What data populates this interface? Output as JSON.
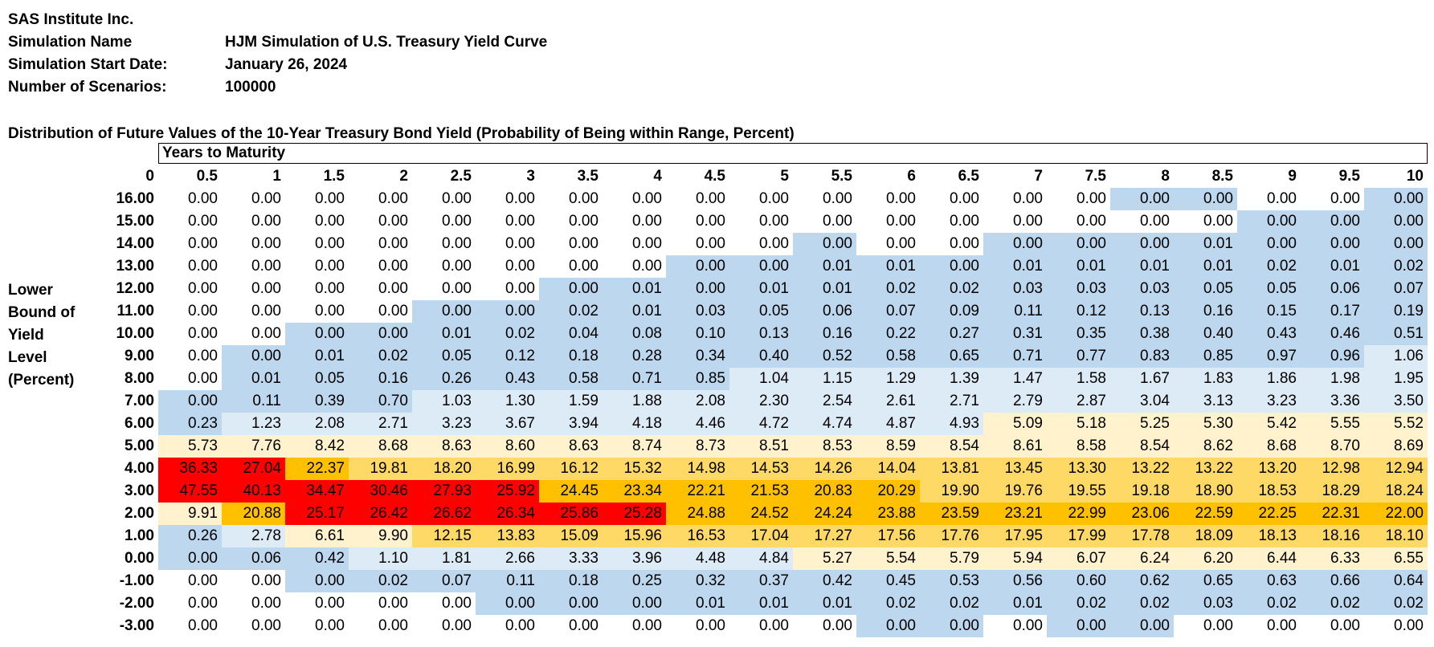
{
  "meta": {
    "company": "SAS Institute Inc.",
    "simulation_name_label": "Simulation Name",
    "simulation_name": "HJM Simulation of U.S. Treasury Yield Curve",
    "start_date_label": "Simulation Start Date:",
    "start_date": "January 26, 2024",
    "scenarios_label": "Number of Scenarios:",
    "scenarios": "100000"
  },
  "table_title": "Distribution of Future Values of the 10-Year Treasury Bond Yield (Probability of Being within Range, Percent)",
  "years_to_maturity_label": "Years to Maturity",
  "row_axis_label": [
    "Lower",
    "Bound of",
    "Yield",
    "Level",
    "(Percent)"
  ],
  "corner": "0",
  "columns": [
    "0.5",
    "1",
    "1.5",
    "2",
    "2.5",
    "3",
    "3.5",
    "4",
    "4.5",
    "5",
    "5.5",
    "6",
    "6.5",
    "7",
    "7.5",
    "8",
    "8.5",
    "9",
    "9.5",
    "10"
  ],
  "colors": {
    "none": "#ffffff",
    "blue": "#bdd7ee",
    "lightblue": "#ddebf7",
    "cream": "#fff2cc",
    "yellow": "#ffd966",
    "orange": "#ffc000",
    "red": "#ff0000"
  },
  "rows": [
    {
      "label": "16.00",
      "values": [
        "0.00",
        "0.00",
        "0.00",
        "0.00",
        "0.00",
        "0.00",
        "0.00",
        "0.00",
        "0.00",
        "0.00",
        "0.00",
        "0.00",
        "0.00",
        "0.00",
        "0.00",
        "0.00",
        "0.00",
        "0.00",
        "0.00",
        "0.00"
      ],
      "shades": [
        "none",
        "none",
        "none",
        "none",
        "none",
        "none",
        "none",
        "none",
        "none",
        "none",
        "none",
        "none",
        "none",
        "none",
        "none",
        "blue",
        "blue",
        "none",
        "none",
        "blue"
      ]
    },
    {
      "label": "15.00",
      "values": [
        "0.00",
        "0.00",
        "0.00",
        "0.00",
        "0.00",
        "0.00",
        "0.00",
        "0.00",
        "0.00",
        "0.00",
        "0.00",
        "0.00",
        "0.00",
        "0.00",
        "0.00",
        "0.00",
        "0.00",
        "0.00",
        "0.00",
        "0.00"
      ],
      "shades": [
        "none",
        "none",
        "none",
        "none",
        "none",
        "none",
        "none",
        "none",
        "none",
        "none",
        "none",
        "none",
        "none",
        "none",
        "none",
        "none",
        "none",
        "blue",
        "blue",
        "blue"
      ]
    },
    {
      "label": "14.00",
      "values": [
        "0.00",
        "0.00",
        "0.00",
        "0.00",
        "0.00",
        "0.00",
        "0.00",
        "0.00",
        "0.00",
        "0.00",
        "0.00",
        "0.00",
        "0.00",
        "0.00",
        "0.00",
        "0.00",
        "0.01",
        "0.00",
        "0.00",
        "0.00"
      ],
      "shades": [
        "none",
        "none",
        "none",
        "none",
        "none",
        "none",
        "none",
        "none",
        "none",
        "none",
        "blue",
        "none",
        "none",
        "blue",
        "blue",
        "blue",
        "blue",
        "blue",
        "blue",
        "blue"
      ]
    },
    {
      "label": "13.00",
      "values": [
        "0.00",
        "0.00",
        "0.00",
        "0.00",
        "0.00",
        "0.00",
        "0.00",
        "0.00",
        "0.00",
        "0.00",
        "0.01",
        "0.01",
        "0.00",
        "0.01",
        "0.01",
        "0.01",
        "0.01",
        "0.02",
        "0.01",
        "0.02"
      ],
      "shades": [
        "none",
        "none",
        "none",
        "none",
        "none",
        "none",
        "none",
        "none",
        "blue",
        "blue",
        "blue",
        "blue",
        "blue",
        "blue",
        "blue",
        "blue",
        "blue",
        "blue",
        "blue",
        "blue"
      ]
    },
    {
      "label": "12.00",
      "values": [
        "0.00",
        "0.00",
        "0.00",
        "0.00",
        "0.00",
        "0.00",
        "0.00",
        "0.01",
        "0.00",
        "0.01",
        "0.01",
        "0.02",
        "0.02",
        "0.03",
        "0.03",
        "0.03",
        "0.05",
        "0.05",
        "0.06",
        "0.07"
      ],
      "shades": [
        "none",
        "none",
        "none",
        "none",
        "none",
        "none",
        "blue",
        "blue",
        "blue",
        "blue",
        "blue",
        "blue",
        "blue",
        "blue",
        "blue",
        "blue",
        "blue",
        "blue",
        "blue",
        "blue"
      ]
    },
    {
      "label": "11.00",
      "values": [
        "0.00",
        "0.00",
        "0.00",
        "0.00",
        "0.00",
        "0.00",
        "0.02",
        "0.01",
        "0.03",
        "0.05",
        "0.06",
        "0.07",
        "0.09",
        "0.11",
        "0.12",
        "0.13",
        "0.16",
        "0.15",
        "0.17",
        "0.19"
      ],
      "shades": [
        "none",
        "none",
        "none",
        "none",
        "blue",
        "blue",
        "blue",
        "blue",
        "blue",
        "blue",
        "blue",
        "blue",
        "blue",
        "blue",
        "blue",
        "blue",
        "blue",
        "blue",
        "blue",
        "blue"
      ]
    },
    {
      "label": "10.00",
      "values": [
        "0.00",
        "0.00",
        "0.00",
        "0.00",
        "0.01",
        "0.02",
        "0.04",
        "0.08",
        "0.10",
        "0.13",
        "0.16",
        "0.22",
        "0.27",
        "0.31",
        "0.35",
        "0.38",
        "0.40",
        "0.43",
        "0.46",
        "0.51"
      ],
      "shades": [
        "none",
        "none",
        "blue",
        "blue",
        "blue",
        "blue",
        "blue",
        "blue",
        "blue",
        "blue",
        "blue",
        "blue",
        "blue",
        "blue",
        "blue",
        "blue",
        "blue",
        "blue",
        "blue",
        "blue"
      ]
    },
    {
      "label": "9.00",
      "values": [
        "0.00",
        "0.00",
        "0.01",
        "0.02",
        "0.05",
        "0.12",
        "0.18",
        "0.28",
        "0.34",
        "0.40",
        "0.52",
        "0.58",
        "0.65",
        "0.71",
        "0.77",
        "0.83",
        "0.85",
        "0.97",
        "0.96",
        "1.06"
      ],
      "shades": [
        "none",
        "blue",
        "blue",
        "blue",
        "blue",
        "blue",
        "blue",
        "blue",
        "blue",
        "blue",
        "blue",
        "blue",
        "blue",
        "blue",
        "blue",
        "blue",
        "blue",
        "blue",
        "blue",
        "lightblue"
      ]
    },
    {
      "label": "8.00",
      "values": [
        "0.00",
        "0.01",
        "0.05",
        "0.16",
        "0.26",
        "0.43",
        "0.58",
        "0.71",
        "0.85",
        "1.04",
        "1.15",
        "1.29",
        "1.39",
        "1.47",
        "1.58",
        "1.67",
        "1.83",
        "1.86",
        "1.98",
        "1.95"
      ],
      "shades": [
        "none",
        "blue",
        "blue",
        "blue",
        "blue",
        "blue",
        "blue",
        "blue",
        "blue",
        "lightblue",
        "lightblue",
        "lightblue",
        "lightblue",
        "lightblue",
        "lightblue",
        "lightblue",
        "lightblue",
        "lightblue",
        "lightblue",
        "lightblue"
      ]
    },
    {
      "label": "7.00",
      "values": [
        "0.00",
        "0.11",
        "0.39",
        "0.70",
        "1.03",
        "1.30",
        "1.59",
        "1.88",
        "2.08",
        "2.30",
        "2.54",
        "2.61",
        "2.71",
        "2.79",
        "2.87",
        "3.04",
        "3.13",
        "3.23",
        "3.36",
        "3.50"
      ],
      "shades": [
        "blue",
        "blue",
        "blue",
        "blue",
        "lightblue",
        "lightblue",
        "lightblue",
        "lightblue",
        "lightblue",
        "lightblue",
        "lightblue",
        "lightblue",
        "lightblue",
        "lightblue",
        "lightblue",
        "lightblue",
        "lightblue",
        "lightblue",
        "lightblue",
        "lightblue"
      ]
    },
    {
      "label": "6.00",
      "values": [
        "0.23",
        "1.23",
        "2.08",
        "2.71",
        "3.23",
        "3.67",
        "3.94",
        "4.18",
        "4.46",
        "4.72",
        "4.74",
        "4.87",
        "4.93",
        "5.09",
        "5.18",
        "5.25",
        "5.30",
        "5.42",
        "5.55",
        "5.52"
      ],
      "shades": [
        "blue",
        "lightblue",
        "lightblue",
        "lightblue",
        "lightblue",
        "lightblue",
        "lightblue",
        "lightblue",
        "lightblue",
        "lightblue",
        "lightblue",
        "lightblue",
        "lightblue",
        "cream",
        "cream",
        "cream",
        "cream",
        "cream",
        "cream",
        "cream"
      ]
    },
    {
      "label": "5.00",
      "values": [
        "5.73",
        "7.76",
        "8.42",
        "8.68",
        "8.63",
        "8.60",
        "8.63",
        "8.74",
        "8.73",
        "8.51",
        "8.53",
        "8.59",
        "8.54",
        "8.61",
        "8.58",
        "8.54",
        "8.62",
        "8.68",
        "8.70",
        "8.69"
      ],
      "shades": [
        "cream",
        "cream",
        "cream",
        "cream",
        "cream",
        "cream",
        "cream",
        "cream",
        "cream",
        "cream",
        "cream",
        "cream",
        "cream",
        "cream",
        "cream",
        "cream",
        "cream",
        "cream",
        "cream",
        "cream"
      ]
    },
    {
      "label": "4.00",
      "values": [
        "36.33",
        "27.04",
        "22.37",
        "19.81",
        "18.20",
        "16.99",
        "16.12",
        "15.32",
        "14.98",
        "14.53",
        "14.26",
        "14.04",
        "13.81",
        "13.45",
        "13.30",
        "13.22",
        "13.22",
        "13.20",
        "12.98",
        "12.94"
      ],
      "shades": [
        "red",
        "red",
        "orange",
        "yellow",
        "yellow",
        "yellow",
        "yellow",
        "yellow",
        "yellow",
        "yellow",
        "yellow",
        "yellow",
        "yellow",
        "yellow",
        "yellow",
        "yellow",
        "yellow",
        "yellow",
        "yellow",
        "yellow"
      ]
    },
    {
      "label": "3.00",
      "values": [
        "47.55",
        "40.13",
        "34.47",
        "30.46",
        "27.93",
        "25.92",
        "24.45",
        "23.34",
        "22.21",
        "21.53",
        "20.83",
        "20.29",
        "19.90",
        "19.76",
        "19.55",
        "19.18",
        "18.90",
        "18.53",
        "18.29",
        "18.24"
      ],
      "shades": [
        "red",
        "red",
        "red",
        "red",
        "red",
        "red",
        "orange",
        "orange",
        "orange",
        "orange",
        "orange",
        "orange",
        "yellow",
        "yellow",
        "yellow",
        "yellow",
        "yellow",
        "yellow",
        "yellow",
        "yellow"
      ]
    },
    {
      "label": "2.00",
      "values": [
        "9.91",
        "20.88",
        "25.17",
        "26.42",
        "26.62",
        "26.34",
        "25.86",
        "25.28",
        "24.88",
        "24.52",
        "24.24",
        "23.88",
        "23.59",
        "23.21",
        "22.99",
        "23.06",
        "22.59",
        "22.25",
        "22.31",
        "22.00"
      ],
      "shades": [
        "cream",
        "orange",
        "red",
        "red",
        "red",
        "red",
        "red",
        "red",
        "orange",
        "orange",
        "orange",
        "orange",
        "orange",
        "orange",
        "orange",
        "orange",
        "orange",
        "orange",
        "orange",
        "orange"
      ]
    },
    {
      "label": "1.00",
      "values": [
        "0.26",
        "2.78",
        "6.61",
        "9.90",
        "12.15",
        "13.83",
        "15.09",
        "15.96",
        "16.53",
        "17.04",
        "17.27",
        "17.56",
        "17.76",
        "17.95",
        "17.99",
        "17.78",
        "18.09",
        "18.13",
        "18.16",
        "18.10"
      ],
      "shades": [
        "blue",
        "lightblue",
        "cream",
        "cream",
        "yellow",
        "yellow",
        "yellow",
        "yellow",
        "yellow",
        "yellow",
        "yellow",
        "yellow",
        "yellow",
        "yellow",
        "yellow",
        "yellow",
        "yellow",
        "yellow",
        "yellow",
        "yellow"
      ]
    },
    {
      "label": "0.00",
      "values": [
        "0.00",
        "0.06",
        "0.42",
        "1.10",
        "1.81",
        "2.66",
        "3.33",
        "3.96",
        "4.48",
        "4.84",
        "5.27",
        "5.54",
        "5.79",
        "5.94",
        "6.07",
        "6.24",
        "6.20",
        "6.44",
        "6.33",
        "6.55"
      ],
      "shades": [
        "blue",
        "blue",
        "blue",
        "lightblue",
        "lightblue",
        "lightblue",
        "lightblue",
        "lightblue",
        "lightblue",
        "lightblue",
        "cream",
        "cream",
        "cream",
        "cream",
        "cream",
        "cream",
        "cream",
        "cream",
        "cream",
        "cream"
      ]
    },
    {
      "label": "-1.00",
      "values": [
        "0.00",
        "0.00",
        "0.00",
        "0.02",
        "0.07",
        "0.11",
        "0.18",
        "0.25",
        "0.32",
        "0.37",
        "0.42",
        "0.45",
        "0.53",
        "0.56",
        "0.60",
        "0.62",
        "0.65",
        "0.63",
        "0.66",
        "0.64"
      ],
      "shades": [
        "none",
        "none",
        "blue",
        "blue",
        "blue",
        "blue",
        "blue",
        "blue",
        "blue",
        "blue",
        "blue",
        "blue",
        "blue",
        "blue",
        "blue",
        "blue",
        "blue",
        "blue",
        "blue",
        "blue"
      ]
    },
    {
      "label": "-2.00",
      "values": [
        "0.00",
        "0.00",
        "0.00",
        "0.00",
        "0.00",
        "0.00",
        "0.00",
        "0.00",
        "0.01",
        "0.01",
        "0.01",
        "0.02",
        "0.02",
        "0.01",
        "0.02",
        "0.02",
        "0.03",
        "0.02",
        "0.02",
        "0.02"
      ],
      "shades": [
        "none",
        "none",
        "none",
        "none",
        "none",
        "blue",
        "blue",
        "blue",
        "blue",
        "blue",
        "blue",
        "blue",
        "blue",
        "blue",
        "blue",
        "blue",
        "blue",
        "blue",
        "blue",
        "blue"
      ]
    },
    {
      "label": "-3.00",
      "values": [
        "0.00",
        "0.00",
        "0.00",
        "0.00",
        "0.00",
        "0.00",
        "0.00",
        "0.00",
        "0.00",
        "0.00",
        "0.00",
        "0.00",
        "0.00",
        "0.00",
        "0.00",
        "0.00",
        "0.00",
        "0.00",
        "0.00",
        "0.00"
      ],
      "shades": [
        "none",
        "none",
        "none",
        "none",
        "none",
        "none",
        "none",
        "none",
        "none",
        "none",
        "none",
        "blue",
        "blue",
        "none",
        "blue",
        "blue",
        "none",
        "none",
        "none",
        "none"
      ]
    }
  ]
}
